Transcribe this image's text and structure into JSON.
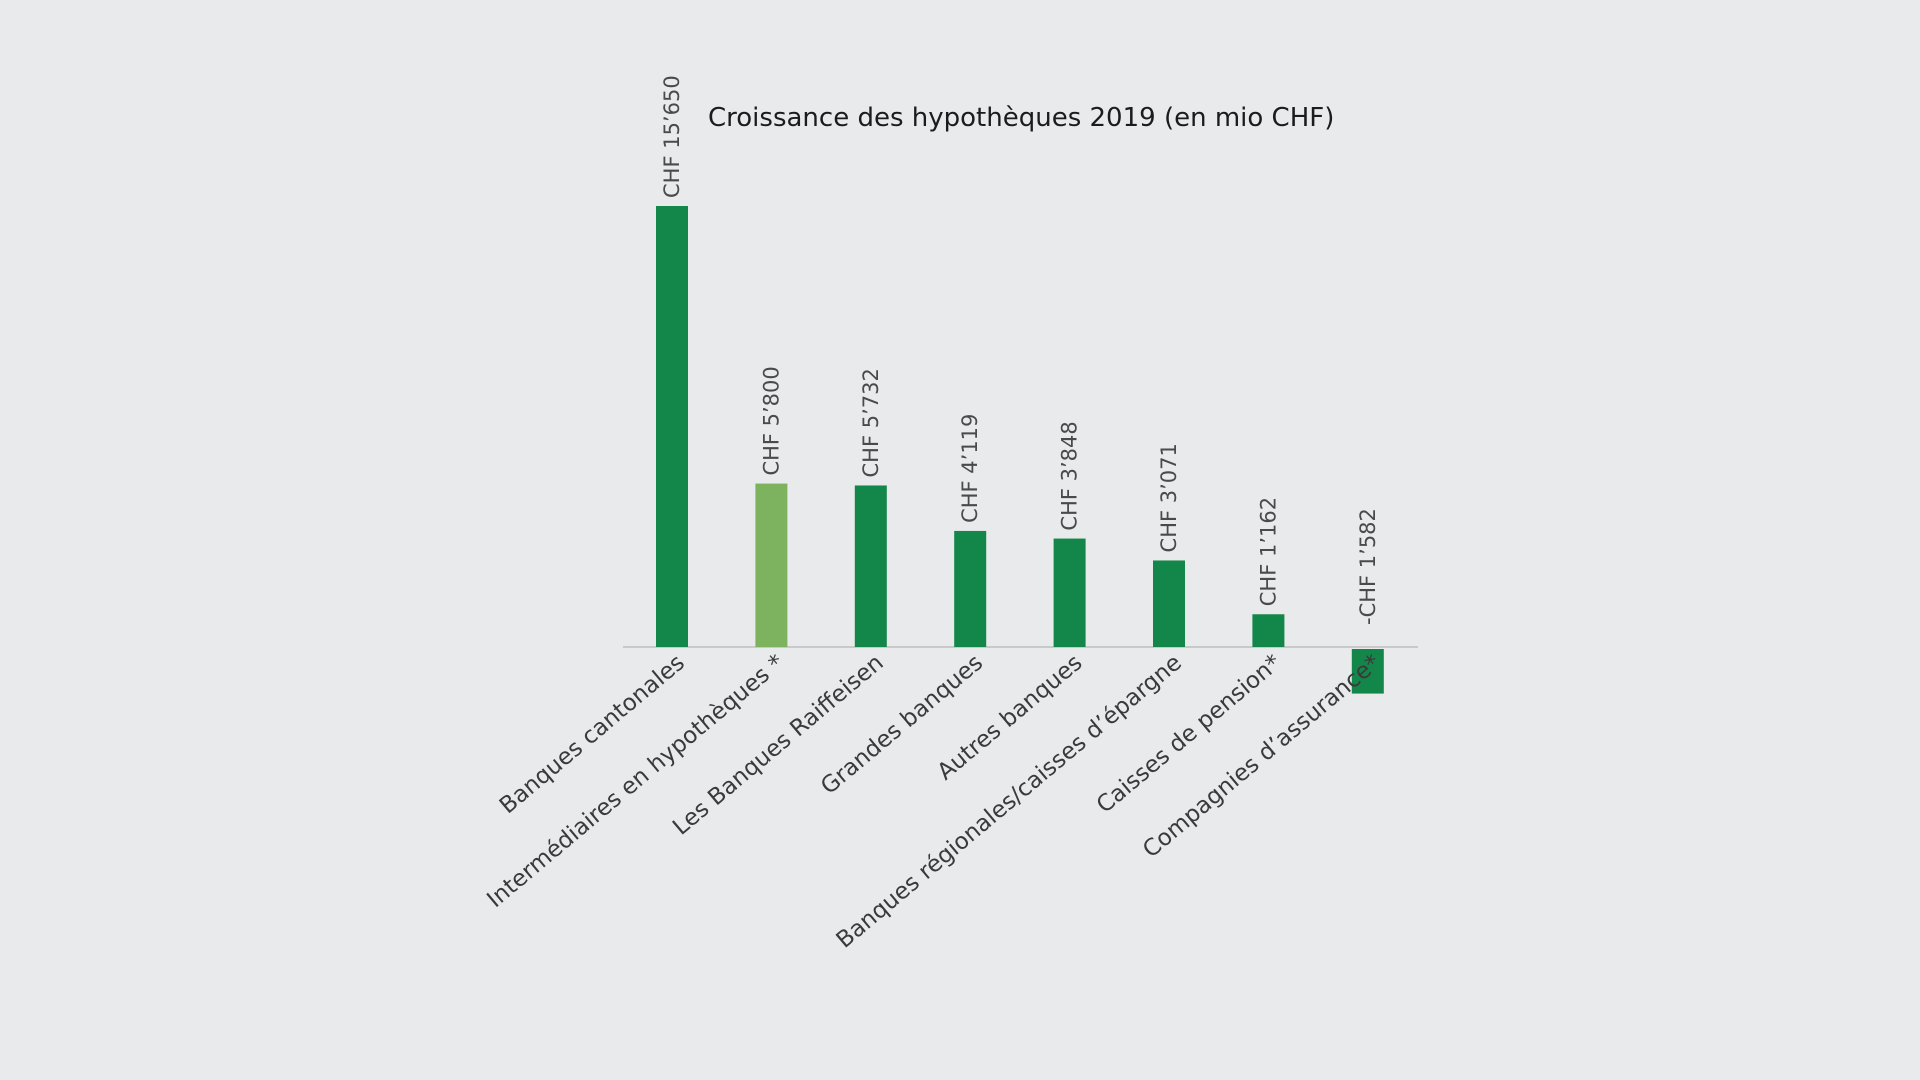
{
  "chart_data": {
    "type": "bar",
    "title": "Croissance des hypothèques 2019 (en mio CHF)",
    "xlabel": "",
    "ylabel": "",
    "ylim": [
      -1582,
      15650
    ],
    "grid": false,
    "categories": [
      "Banques cantonales",
      "Intermédiaires en hypothèques *",
      "Les Banques Raiffeisen",
      "Grandes banques",
      "Autres banques",
      "Banques régionales/caisses d’épargne",
      "Caisses de pension*",
      "Compagnies d’assurance*"
    ],
    "values": [
      15650,
      5800,
      5732,
      4119,
      3848,
      3071,
      1162,
      -1582
    ],
    "data_labels": [
      "CHF 15’650",
      "CHF 5’800",
      "CHF 5’732",
      "CHF 4’119",
      "CHF 3’848",
      "CHF 3’071",
      "CHF 1’162",
      "-CHF 1’582"
    ],
    "colors": [
      "#13874a",
      "#7db35f",
      "#13874a",
      "#13874a",
      "#13874a",
      "#13874a",
      "#13874a",
      "#13874a"
    ],
    "axis_color": "#c9c9c9"
  }
}
